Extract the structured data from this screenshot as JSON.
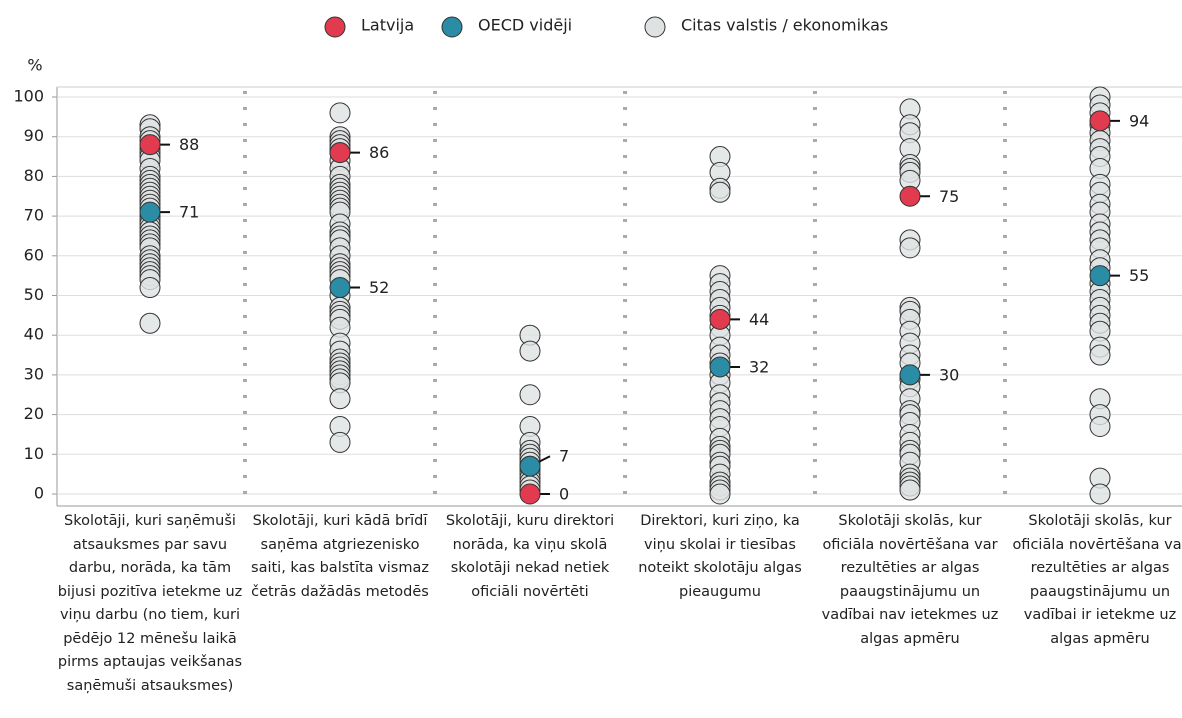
{
  "chart_data": {
    "type": "strip",
    "y_label": "%",
    "categories": [
      "Skolotāji, kuri saņēmuši atsauksmes par savu darbu, norāda, ka tām bijusi pozitīva ietekme uz viņu darbu (no tiem, kuri pēdējo 12 mēnešu laikā pirms aptaujas veikšanas saņēmuši atsauksmes)",
      "Skolotāji, kuri kādā brīdī saņēma atgriezenisko saiti, kas balstīta vismaz četrās dažādās metodēs",
      "Skolotāji, kuru direktori norāda, ka viņu skolā skolotāji nekad netiek oficiāli novērtēti",
      "Direktori, kuri ziņo, ka viņu skolai ir tiesības noteikt skolotāju algas pieaugumu",
      "Skolotāji skolās, kur oficiāla novērtēšana var rezultēties ar algas paaugstinājumu un vadībai nav ietekmes uz algas apmēru",
      "Skolotāji skolās, kur oficiāla novērtēšana var rezultēties ar algas paaugstinājumu un vadībai ir ietekme uz algas apmēru"
    ],
    "series": [
      {
        "name": "Citas valstis / ekonomikas",
        "color": "#dfe2e2",
        "values": [
          [
            93,
            92,
            90,
            89,
            87,
            86,
            85,
            84,
            82,
            80,
            79,
            78,
            77,
            76,
            75,
            74,
            73,
            72,
            70,
            69,
            68,
            67,
            66,
            65,
            64,
            63,
            62,
            60,
            59,
            58,
            57,
            56,
            55,
            54,
            52,
            43
          ],
          [
            96,
            90,
            89,
            88,
            87,
            86,
            84,
            82,
            80,
            78,
            77,
            76,
            75,
            74,
            73,
            72,
            71,
            68,
            66,
            65,
            64,
            62,
            60,
            58,
            57,
            56,
            55,
            54,
            50,
            47,
            46,
            45,
            44,
            42,
            38,
            36,
            34,
            33,
            32,
            31,
            30,
            29,
            28,
            24,
            17,
            13
          ],
          [
            40,
            36,
            25,
            17,
            13,
            11,
            10,
            9,
            8,
            7,
            6,
            5,
            4,
            3,
            2,
            1
          ],
          [
            85,
            81,
            77,
            76,
            55,
            53,
            51,
            49,
            47,
            45,
            42,
            40,
            37,
            35,
            33,
            30,
            28,
            25,
            23,
            21,
            19,
            17,
            14,
            12,
            11,
            10,
            8,
            7,
            5,
            3,
            2,
            1,
            0
          ],
          [
            97,
            93,
            91,
            87,
            83,
            82,
            81,
            79,
            64,
            62,
            47,
            46,
            44,
            41,
            38,
            35,
            33,
            29,
            27,
            24,
            21,
            20,
            18,
            15,
            13,
            11,
            10,
            8,
            5,
            4,
            3,
            2,
            1
          ],
          [
            100,
            98,
            96,
            93,
            91,
            89,
            87,
            85,
            82,
            78,
            76,
            73,
            71,
            68,
            66,
            64,
            62,
            59,
            57,
            53,
            51,
            49,
            47,
            45,
            43,
            41,
            37,
            35,
            24,
            20,
            17,
            4,
            0
          ]
        ]
      },
      {
        "name": "OECD vidēji",
        "color": "#2b8ca6",
        "values": [
          71,
          52,
          7,
          32,
          30,
          55
        ]
      },
      {
        "name": "Latvija",
        "color": "#e23a4e",
        "values": [
          88,
          86,
          0,
          44,
          75,
          94
        ]
      }
    ],
    "ylim": [
      0,
      100
    ],
    "yticks": [
      0,
      10,
      20,
      30,
      40,
      50,
      60,
      70,
      80,
      90,
      100
    ],
    "grid": true
  }
}
